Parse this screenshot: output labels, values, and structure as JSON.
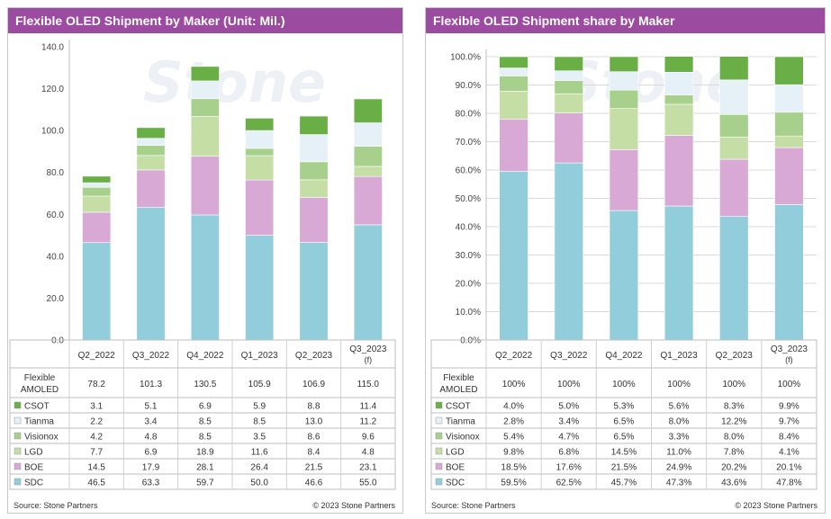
{
  "charts": [
    {
      "title": "Flexible OLED Shipment by Maker (Unit: Mil.)",
      "source": "Source: Stone Partners",
      "copyright": "© 2023 Stone Partners"
    },
    {
      "title": "Flexible OLED Shipment share by Maker",
      "source": "Source: Stone Partners",
      "copyright": "© 2023 Stone Partners"
    }
  ],
  "chart_data": [
    {
      "type": "bar",
      "stacked": true,
      "title": "Flexible OLED Shipment by Maker (Unit: Mil.)",
      "categories": [
        "Q2_2022",
        "Q3_2022",
        "Q4_2022",
        "Q1_2023",
        "Q2_2023",
        "Q3_2023 (f)"
      ],
      "ylim": [
        0,
        140
      ],
      "yticks": [
        "0.0",
        "20.0",
        "40.0",
        "60.0",
        "80.0",
        "100.0",
        "120.0",
        "140.0"
      ],
      "grid": false,
      "total_row": {
        "label": "Flexible AMOLED",
        "values": [
          "78.2",
          "101.3",
          "130.5",
          "105.9",
          "106.9",
          "115.0"
        ]
      },
      "series": [
        {
          "name": "SDC",
          "color": "#92cddc",
          "values": [
            46.5,
            63.3,
            59.7,
            50.0,
            46.6,
            55.0
          ],
          "labels": [
            "46.5",
            "63.3",
            "59.7",
            "50.0",
            "46.6",
            "55.0"
          ]
        },
        {
          "name": "BOE",
          "color": "#d9a9d6",
          "values": [
            14.5,
            17.9,
            28.1,
            26.4,
            21.5,
            23.1
          ],
          "labels": [
            "14.5",
            "17.9",
            "28.1",
            "26.4",
            "21.5",
            "23.1"
          ]
        },
        {
          "name": "LGD",
          "color": "#c5dea6",
          "values": [
            7.7,
            6.9,
            18.9,
            11.6,
            8.4,
            4.8
          ],
          "labels": [
            "7.7",
            "6.9",
            "18.9",
            "11.6",
            "8.4",
            "4.8"
          ]
        },
        {
          "name": "Visionox",
          "color": "#a8d08d",
          "values": [
            4.2,
            4.8,
            8.5,
            3.5,
            8.6,
            9.6
          ],
          "labels": [
            "4.2",
            "4.8",
            "8.5",
            "3.5",
            "8.6",
            "9.6"
          ]
        },
        {
          "name": "Tianma",
          "color": "#e6f0f7",
          "values": [
            2.2,
            3.4,
            8.5,
            8.5,
            13.0,
            11.2
          ],
          "labels": [
            "2.2",
            "3.4",
            "8.5",
            "8.5",
            "13.0",
            "11.2"
          ]
        },
        {
          "name": "CSOT",
          "color": "#6aaf45",
          "values": [
            3.1,
            5.1,
            6.9,
            5.9,
            8.8,
            11.4
          ],
          "labels": [
            "3.1",
            "5.1",
            "6.9",
            "5.9",
            "8.8",
            "11.4"
          ]
        }
      ]
    },
    {
      "type": "bar",
      "stacked": true,
      "title": "Flexible OLED Shipment share by Maker",
      "categories": [
        "Q2_2022",
        "Q3_2022",
        "Q4_2022",
        "Q1_2023",
        "Q2_2023",
        "Q3_2023 (f)"
      ],
      "ylim": [
        0,
        100
      ],
      "yticks": [
        "0.0%",
        "10.0%",
        "20.0%",
        "30.0%",
        "40.0%",
        "50.0%",
        "60.0%",
        "70.0%",
        "80.0%",
        "90.0%",
        "100.0%"
      ],
      "grid": true,
      "total_row": {
        "label": "Flexible AMOLED",
        "values": [
          "100%",
          "100%",
          "100%",
          "100%",
          "100%",
          "100%"
        ]
      },
      "series": [
        {
          "name": "SDC",
          "color": "#92cddc",
          "values": [
            59.5,
            62.5,
            45.7,
            47.3,
            43.6,
            47.8
          ],
          "labels": [
            "59.5%",
            "62.5%",
            "45.7%",
            "47.3%",
            "43.6%",
            "47.8%"
          ]
        },
        {
          "name": "BOE",
          "color": "#d9a9d6",
          "values": [
            18.5,
            17.6,
            21.5,
            24.9,
            20.2,
            20.1
          ],
          "labels": [
            "18.5%",
            "17.6%",
            "21.5%",
            "24.9%",
            "20.2%",
            "20.1%"
          ]
        },
        {
          "name": "LGD",
          "color": "#c5dea6",
          "values": [
            9.8,
            6.8,
            14.5,
            11.0,
            7.8,
            4.1
          ],
          "labels": [
            "9.8%",
            "6.8%",
            "14.5%",
            "11.0%",
            "7.8%",
            "4.1%"
          ]
        },
        {
          "name": "Visionox",
          "color": "#a8d08d",
          "values": [
            5.4,
            4.7,
            6.5,
            3.3,
            8.0,
            8.4
          ],
          "labels": [
            "5.4%",
            "4.7%",
            "6.5%",
            "3.3%",
            "8.0%",
            "8.4%"
          ]
        },
        {
          "name": "Tianma",
          "color": "#e6f0f7",
          "values": [
            2.8,
            3.4,
            6.5,
            8.0,
            12.2,
            9.7
          ],
          "labels": [
            "2.8%",
            "3.4%",
            "6.5%",
            "8.0%",
            "12.2%",
            "9.7%"
          ]
        },
        {
          "name": "CSOT",
          "color": "#6aaf45",
          "values": [
            4.0,
            5.0,
            5.3,
            5.6,
            8.3,
            9.9
          ],
          "labels": [
            "4.0%",
            "5.0%",
            "5.3%",
            "5.6%",
            "8.3%",
            "9.9%"
          ]
        }
      ]
    }
  ]
}
